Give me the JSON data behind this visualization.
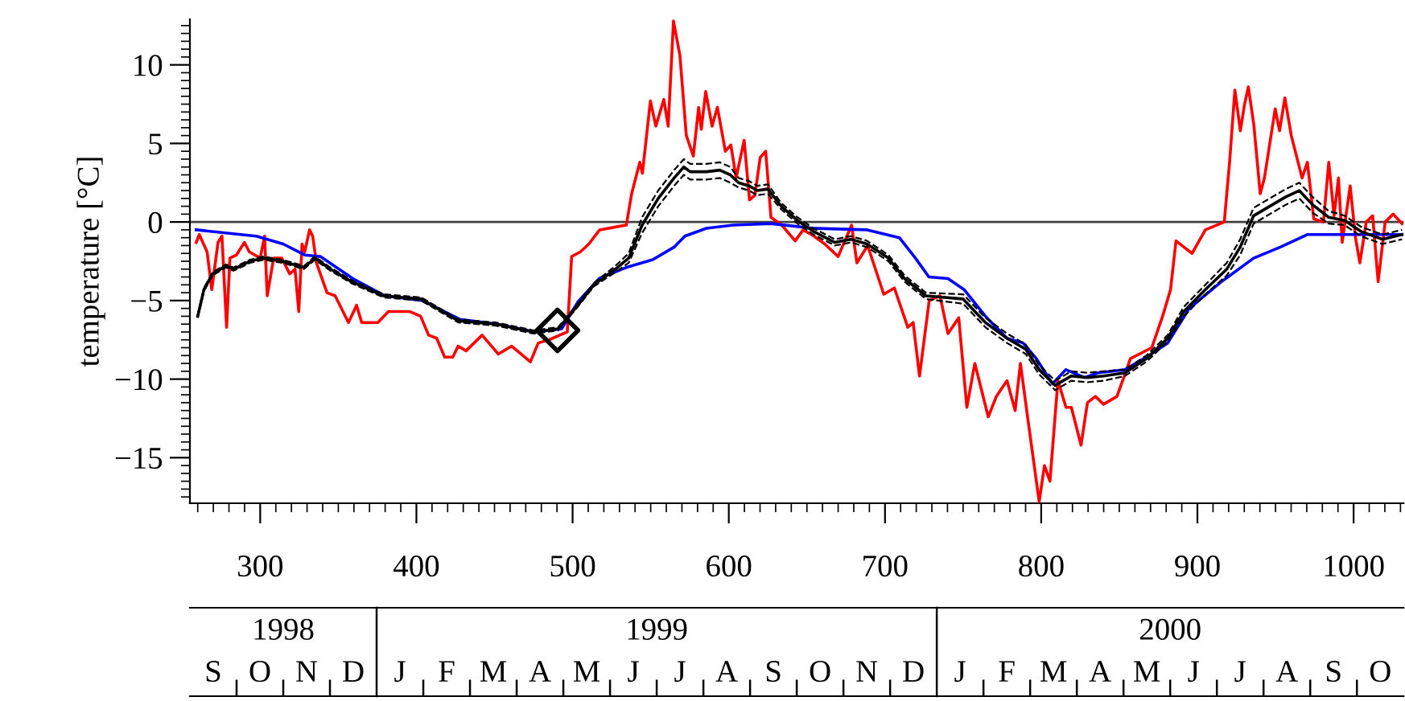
{
  "chart_data": [
    {
      "type": "line",
      "ylabel": "temperature [°C]",
      "xlim": [
        255,
        1032
      ],
      "ylim": [
        -17.9,
        12.9
      ],
      "xticks": [
        300,
        400,
        500,
        600,
        700,
        800,
        900,
        1000
      ],
      "yticks": [
        {
          "value": -15,
          "label": "−15"
        },
        {
          "value": -10,
          "label": "−10"
        },
        {
          "value": -5,
          "label": "−5"
        },
        0,
        5,
        10
      ],
      "ref_lines": [
        {
          "axis": "y",
          "value": 0,
          "color": "#404040"
        }
      ],
      "grid": false,
      "legend": false,
      "series": [
        {
          "color": "#ff0000",
          "x": [
            259,
            261,
            266,
            269,
            273,
            275.5,
            278.5,
            280.6,
            284.8,
            289.9,
            293,
            300,
            302.8,
            304.5,
            308.6,
            313.8,
            318.9,
            322.3,
            324.7,
            326.8,
            328.5,
            331.6,
            333.6,
            336,
            342.8,
            348,
            356.5,
            361.7,
            365,
            375.3,
            382.1,
            395.9,
            402.7,
            407.8,
            413,
            418.1,
            423.3,
            426.7,
            431.8,
            442.1,
            452.4,
            461,
            473,
            478,
            484.9,
            491.8,
            496.6,
            499.4,
            505,
            510.4,
            517.3,
            534.4,
            537.8,
            543,
            544.7,
            549.8,
            553.3,
            558.4,
            561.2,
            564.6,
            568.7,
            572.8,
            577.3,
            580.7,
            582.4,
            585.2,
            589.3,
            592.7,
            597.8,
            601.3,
            604.7,
            609.8,
            613.3,
            616.7,
            620.1,
            623.6,
            627,
            633.9,
            642.5,
            647.6,
            654.5,
            661.4,
            670,
            678.6,
            682,
            688.9,
            699.2,
            706,
            714.6,
            718,
            722.1,
            728.3,
            735.2,
            740.3,
            747.2,
            752.4,
            757.5,
            766.1,
            771.3,
            778.1,
            783.3,
            786.7,
            791.8,
            798.7,
            802.1,
            805.6,
            810.7,
            815.9,
            819.3,
            825.5,
            829.6,
            834.7,
            839.9,
            848.5,
            853.6,
            857.1,
            870.8,
            877.7,
            882.8,
            886.3,
            891.4,
            896.6,
            905.1,
            917.2,
            920.6,
            924,
            927.5,
            930.2,
            932.6,
            936.1,
            940.2,
            942.9,
            949.8,
            952.6,
            956,
            960.1,
            967,
            970.4,
            974.5,
            980.7,
            984.1,
            987.5,
            990.3,
            992.7,
            997.8,
            1001.2,
            1004,
            1008.1,
            1012.2,
            1015.7,
            1020.2,
            1025.3,
            1031
          ],
          "values": [
            -1.3,
            -0.8,
            -1.9,
            -4.3,
            -1.3,
            -0.9,
            -6.7,
            -2.3,
            -2.1,
            -1.3,
            -1.9,
            -2.3,
            -0.9,
            -4.7,
            -2.3,
            -2.3,
            -3.3,
            -3.0,
            -5.7,
            -1.4,
            -1.9,
            -0.5,
            -0.9,
            -2.6,
            -4.5,
            -4.7,
            -6.4,
            -5.3,
            -6.4,
            -6.4,
            -5.7,
            -5.7,
            -6.0,
            -7.2,
            -7.4,
            -8.6,
            -8.6,
            -7.9,
            -8.2,
            -7.2,
            -8.4,
            -7.9,
            -8.9,
            -7.7,
            -7.5,
            -7.2,
            -7.0,
            -2.2,
            -1.9,
            -1.4,
            -0.5,
            -0.2,
            1.8,
            3.8,
            3.1,
            7.7,
            6.1,
            7.8,
            6.1,
            12.8,
            10.6,
            5.5,
            4.2,
            7.3,
            5.9,
            8.3,
            6.1,
            7.3,
            4.5,
            4.9,
            2.8,
            5.2,
            1.4,
            1.7,
            4.1,
            4.5,
            0.3,
            -0.2,
            -1.2,
            -0.5,
            -0.9,
            -1.4,
            -2.2,
            -0.2,
            -2.6,
            -1.5,
            -4.6,
            -4.2,
            -6.7,
            -6.4,
            -9.8,
            -5.0,
            -4.7,
            -7.1,
            -6.1,
            -11.8,
            -9.0,
            -12.4,
            -11.1,
            -10.1,
            -12.0,
            -9.0,
            -12.8,
            -17.8,
            -15.5,
            -16.5,
            -10.1,
            -11.8,
            -11.8,
            -14.2,
            -11.5,
            -11.1,
            -11.6,
            -11.1,
            -9.7,
            -8.7,
            -8.0,
            -6.0,
            -4.3,
            -1.2,
            -1.6,
            -2.0,
            -0.5,
            0,
            3.8,
            8.4,
            5.8,
            7.5,
            8.6,
            6.2,
            1.8,
            2.8,
            7.2,
            5.8,
            7.9,
            5.5,
            2.8,
            3.8,
            0.2,
            0,
            3.8,
            0.4,
            2.8,
            -1.3,
            2.3,
            -1.0,
            -2.6,
            0,
            0.4,
            -3.8,
            0,
            0.5,
            -0.1
          ]
        },
        {
          "color": "#0000ff",
          "x": [
            259,
            297.5,
            314.7,
            328.5,
            338.7,
            359.3,
            379.9,
            403.9,
            427.9,
            452,
            476,
            493,
            503.3,
            517,
            534.2,
            551.3,
            565,
            571.9,
            585.6,
            602.8,
            626.8,
            654.3,
            688.6,
            709.2,
            719.5,
            728.1,
            740.3,
            750.6,
            764.3,
            778.1,
            788.4,
            796.9,
            807.2,
            815.8,
            827.8,
            836.4,
            853.6,
            867.3,
            881,
            894.8,
            915.4,
            936,
            953.1,
            970.3,
            990.9,
            1031
          ],
          "values": [
            -0.5,
            -0.9,
            -1.4,
            -2.1,
            -2.2,
            -3.6,
            -4.7,
            -5.0,
            -6.2,
            -6.5,
            -7.0,
            -6.8,
            -5.1,
            -3.6,
            -2.9,
            -2.4,
            -1.6,
            -0.9,
            -0.4,
            -0.2,
            -0.1,
            -0.4,
            -0.5,
            -1.0,
            -2.3,
            -3.5,
            -3.6,
            -4.3,
            -6.0,
            -7.4,
            -7.7,
            -8.7,
            -10.3,
            -9.4,
            -9.9,
            -9.6,
            -9.4,
            -8.6,
            -7.7,
            -5.5,
            -3.8,
            -2.3,
            -1.6,
            -0.8,
            -0.8,
            -0.8
          ]
        },
        {
          "color": "#000000",
          "x": [
            260,
            264,
            269.5,
            278,
            283,
            293.5,
            302,
            314,
            328,
            335,
            345,
            358.5,
            379,
            403,
            427,
            451,
            475,
            490.7,
            503.3,
            513.6,
            527.3,
            535.9,
            544.5,
            554.8,
            565,
            571.2,
            575.3,
            585.6,
            594.2,
            601,
            606.2,
            613,
            618.2,
            625,
            633.6,
            643.9,
            654.2,
            667.9,
            678.2,
            688.5,
            702.2,
            712.5,
            726.2,
            750,
            764.3,
            778.1,
            790.1,
            798.7,
            808.9,
            819.3,
            829.6,
            839.9,
            853.6,
            867.3,
            881,
            891.3,
            905.1,
            918.8,
            927.4,
            936,
            946.3,
            956.6,
            965.2,
            973.7,
            984,
            994.3,
            1004.6,
            1018.4,
            1031
          ],
          "values": [
            -6.0,
            -4.3,
            -3.3,
            -2.8,
            -3.0,
            -2.5,
            -2.3,
            -2.5,
            -2.9,
            -2.3,
            -3.0,
            -3.8,
            -4.7,
            -4.9,
            -6.3,
            -6.5,
            -7.0,
            -6.8,
            -5.3,
            -4.0,
            -3.0,
            -2.3,
            -0.2,
            1.5,
            2.8,
            3.5,
            3.2,
            3.2,
            3.3,
            3.0,
            2.5,
            2.3,
            2.0,
            2.1,
            1.0,
            0.1,
            -0.6,
            -1.3,
            -1.1,
            -1.4,
            -2.3,
            -3.6,
            -4.7,
            -4.9,
            -6.4,
            -7.4,
            -8.1,
            -9.4,
            -10.4,
            -9.8,
            -9.9,
            -9.8,
            -9.6,
            -8.7,
            -7.4,
            -5.7,
            -4.3,
            -3.0,
            -1.6,
            0.4,
            1.0,
            1.6,
            2.0,
            1.1,
            0.3,
            0.1,
            -0.6,
            -1.1,
            -0.8
          ]
        },
        {
          "color": "#000000",
          "line_style": "dashed",
          "x": [
            260,
            264,
            269.5,
            278,
            283,
            293.5,
            302,
            314,
            328,
            335,
            345,
            358.5,
            379,
            403,
            427,
            451,
            475,
            490.7,
            503.3,
            513.6,
            527.3,
            535.9,
            544.5,
            554.8,
            565,
            571.2,
            575.3,
            585.6,
            594.2,
            601,
            606.2,
            613,
            618.2,
            625,
            633.6,
            643.9,
            654.2,
            667.9,
            678.2,
            688.5,
            702.2,
            712.5,
            726.2,
            750,
            764.3,
            778.1,
            790.1,
            798.7,
            808.9,
            819.3,
            829.6,
            839.9,
            853.6,
            867.3,
            881,
            891.3,
            905.1,
            918.8,
            927.4,
            936,
            946.3,
            956.6,
            965.2,
            973.7,
            984,
            994.3,
            1004.6,
            1018.4,
            1031
          ],
          "values": [
            -6.1,
            -4.4,
            -3.4,
            -2.9,
            -3.1,
            -2.6,
            -2.4,
            -2.6,
            -3.0,
            -2.4,
            -3.1,
            -3.9,
            -4.8,
            -5.0,
            -6.4,
            -6.6,
            -7.1,
            -6.9,
            -5.4,
            -4.1,
            -3.2,
            -2.6,
            -0.7,
            1.0,
            2.3,
            3.0,
            2.7,
            2.7,
            2.8,
            2.5,
            2.2,
            2.0,
            1.7,
            1.8,
            0.8,
            -0.1,
            -0.8,
            -1.5,
            -1.3,
            -1.6,
            -2.5,
            -3.8,
            -4.9,
            -5.2,
            -6.7,
            -7.7,
            -8.4,
            -9.7,
            -10.7,
            -10.1,
            -10.2,
            -10.1,
            -9.8,
            -8.9,
            -7.6,
            -6.0,
            -4.6,
            -3.4,
            -2.1,
            -0.1,
            0.5,
            1.1,
            1.5,
            0.6,
            -0.1,
            -0.2,
            -0.9,
            -1.4,
            -1.1
          ]
        },
        {
          "color": "#000000",
          "line_style": "dashed",
          "x": [
            260,
            264,
            269.5,
            278,
            283,
            293.5,
            302,
            314,
            328,
            335,
            345,
            358.5,
            379,
            403,
            427,
            451,
            475,
            490.7,
            503.3,
            513.6,
            527.3,
            535.9,
            544.5,
            554.8,
            565,
            571.2,
            575.3,
            585.6,
            594.2,
            601,
            606.2,
            613,
            618.2,
            625,
            633.6,
            643.9,
            654.2,
            667.9,
            678.2,
            688.5,
            702.2,
            712.5,
            726.2,
            750,
            764.3,
            778.1,
            790.1,
            798.7,
            808.9,
            819.3,
            829.6,
            839.9,
            853.6,
            867.3,
            881,
            891.3,
            905.1,
            918.8,
            927.4,
            936,
            946.3,
            956.6,
            965.2,
            973.7,
            984,
            994.3,
            1004.6,
            1018.4,
            1031
          ],
          "values": [
            -5.9,
            -4.2,
            -3.2,
            -2.7,
            -2.9,
            -2.4,
            -2.2,
            -2.4,
            -2.8,
            -2.2,
            -2.9,
            -3.7,
            -4.6,
            -4.8,
            -6.2,
            -6.4,
            -6.9,
            -6.7,
            -5.2,
            -3.9,
            -2.8,
            -2.0,
            0.3,
            2.0,
            3.3,
            4.0,
            3.7,
            3.7,
            3.8,
            3.5,
            2.8,
            2.6,
            2.3,
            2.4,
            1.2,
            0.3,
            -0.4,
            -1.1,
            -0.9,
            -1.2,
            -2.1,
            -3.4,
            -4.5,
            -4.6,
            -6.1,
            -7.1,
            -7.8,
            -9.1,
            -10.1,
            -9.5,
            -9.6,
            -9.5,
            -9.4,
            -8.5,
            -7.2,
            -5.4,
            -4.0,
            -2.6,
            -1.1,
            0.9,
            1.5,
            2.1,
            2.5,
            1.6,
            0.7,
            0.4,
            -0.3,
            -0.8,
            -0.5
          ]
        },
        {
          "type": "scatter",
          "color": "#000000",
          "marker": "diamond",
          "x": [
            490.3
          ],
          "values": [
            -6.9
          ]
        }
      ]
    },
    {
      "type": "other",
      "title": "1998",
      "categories": [
        "S",
        "O",
        "N",
        "D"
      ]
    },
    {
      "type": "other",
      "title": "1999",
      "categories": [
        "J",
        "F",
        "M",
        "A",
        "M",
        "J",
        "J",
        "A",
        "S",
        "O",
        "N",
        "D"
      ]
    },
    {
      "type": "other",
      "title": "2000",
      "categories": [
        "J",
        "F",
        "M",
        "A",
        "M",
        "J",
        "J",
        "A",
        "S",
        "O"
      ]
    }
  ]
}
